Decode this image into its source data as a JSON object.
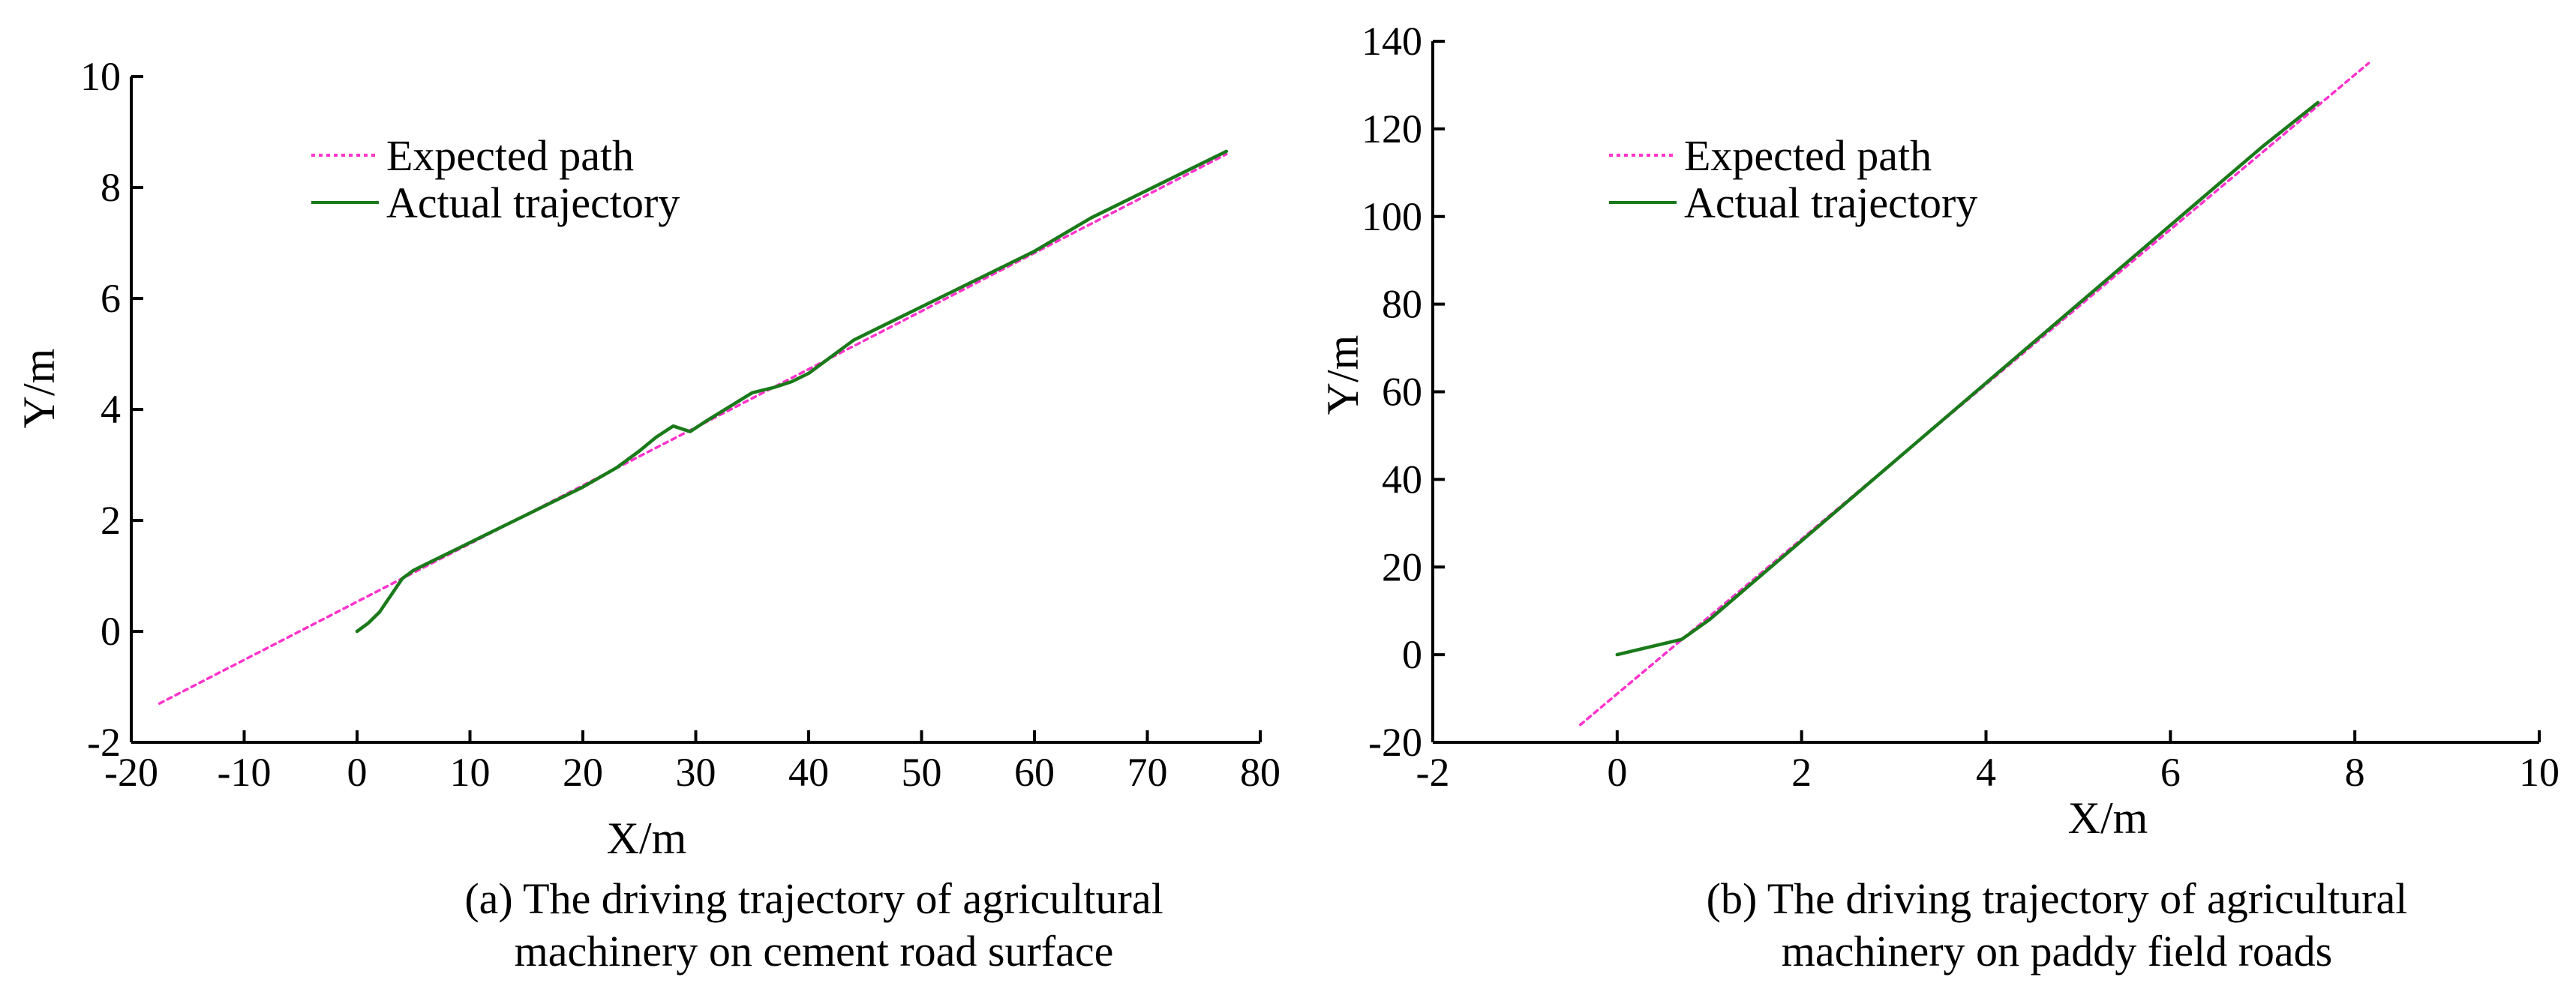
{
  "chart_data": [
    {
      "id": "a",
      "type": "line",
      "xlabel": "X/m",
      "ylabel": "Y/m",
      "xlim": [
        -20,
        80
      ],
      "ylim": [
        -2,
        10
      ],
      "xticks": [
        -20,
        -10,
        0,
        10,
        20,
        30,
        40,
        50,
        60,
        70,
        80
      ],
      "yticks": [
        -2,
        0,
        2,
        4,
        6,
        8,
        10
      ],
      "legend_position": "top-left",
      "caption_lines": [
        "(a) The driving trajectory of agricultural",
        "machinery on cement road surface"
      ],
      "series": [
        {
          "name": "Expected path",
          "style": "dotted",
          "color": "#ff33cc",
          "points": [
            [
              -17.5,
              -1.3
            ],
            [
              77,
              8.6
            ]
          ]
        },
        {
          "name": "Actual trajectory",
          "style": "solid",
          "color": "#1a7a1a",
          "points": [
            [
              0,
              0
            ],
            [
              1,
              0.15
            ],
            [
              2,
              0.35
            ],
            [
              3,
              0.65
            ],
            [
              4,
              0.95
            ],
            [
              5,
              1.1
            ],
            [
              6,
              1.2
            ],
            [
              10,
              1.6
            ],
            [
              15,
              2.1
            ],
            [
              20,
              2.6
            ],
            [
              23,
              2.95
            ],
            [
              25,
              3.25
            ],
            [
              26.5,
              3.5
            ],
            [
              28,
              3.7
            ],
            [
              29.5,
              3.6
            ],
            [
              31,
              3.8
            ],
            [
              33,
              4.05
            ],
            [
              35,
              4.3
            ],
            [
              37,
              4.4
            ],
            [
              38.5,
              4.5
            ],
            [
              40,
              4.65
            ],
            [
              42,
              4.95
            ],
            [
              44,
              5.25
            ],
            [
              47,
              5.55
            ],
            [
              50,
              5.85
            ],
            [
              55,
              6.35
            ],
            [
              60,
              6.85
            ],
            [
              65,
              7.45
            ],
            [
              70,
              7.95
            ],
            [
              77,
              8.65
            ]
          ]
        }
      ]
    },
    {
      "id": "b",
      "type": "line",
      "xlabel": "X/m",
      "ylabel": "Y/m",
      "xlim": [
        -2,
        10
      ],
      "ylim": [
        -20,
        140
      ],
      "xticks": [
        -2,
        0,
        2,
        4,
        6,
        8,
        10
      ],
      "yticks": [
        -20,
        0,
        20,
        40,
        60,
        80,
        100,
        120,
        140
      ],
      "legend_position": "top-left",
      "caption_lines": [
        "(b) The driving trajectory of agricultural",
        "machinery on paddy field roads"
      ],
      "series": [
        {
          "name": "Expected path",
          "style": "dotted",
          "color": "#ff33cc",
          "points": [
            [
              -0.4,
              -16
            ],
            [
              8.15,
              135
            ]
          ]
        },
        {
          "name": "Actual trajectory",
          "style": "solid",
          "color": "#1a7a1a",
          "points": [
            [
              0,
              0
            ],
            [
              0.7,
              3.5
            ],
            [
              1.0,
              8
            ],
            [
              1.5,
              17
            ],
            [
              2,
              26
            ],
            [
              3,
              44
            ],
            [
              4,
              62
            ],
            [
              5,
              80
            ],
            [
              6,
              98
            ],
            [
              7,
              116
            ],
            [
              7.6,
              126
            ]
          ]
        }
      ]
    }
  ]
}
